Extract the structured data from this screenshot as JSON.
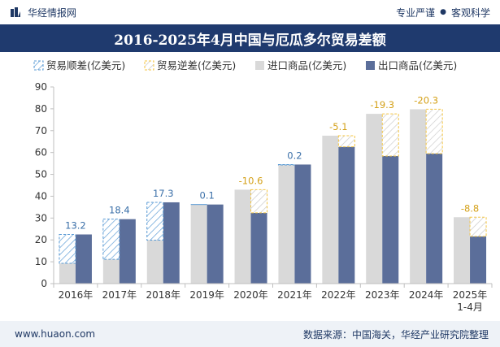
{
  "header": {
    "brand": "华经情报网",
    "slogan_left": "专业严谨",
    "slogan_sep": "●",
    "slogan_right": "客观科学"
  },
  "footer": {
    "url": "www.huaon.com",
    "source": "数据来源：中国海关，华经产业研究院整理"
  },
  "colors": {
    "surplus": "#5b9bd5",
    "deficit": "#f4c542",
    "import": "#d9d9d9",
    "export": "#5b6e9a",
    "title_bg": "#1f3a6e"
  },
  "chart_data": {
    "type": "bar",
    "title": "2016-2025年4月中国与厄瓜多尔贸易差额",
    "categories": [
      "2016年",
      "2017年",
      "2018年",
      "2019年",
      "2020年",
      "2021年",
      "2022年",
      "2023年",
      "2024年",
      "2025年\n1-4月"
    ],
    "series": [
      {
        "name": "贸易顺差(亿美元)",
        "values": [
          13.2,
          18.4,
          17.3,
          0.1,
          null,
          0.2,
          null,
          null,
          null,
          null
        ],
        "labels": [
          "13.2",
          "18.4",
          "17.3",
          "0.1",
          "",
          "0.2",
          "",
          "",
          "",
          ""
        ]
      },
      {
        "name": "贸易逆差(亿美元)",
        "values": [
          null,
          null,
          null,
          null,
          -10.6,
          null,
          -5.1,
          -19.3,
          -20.3,
          -8.8
        ],
        "labels": [
          "",
          "",
          "",
          "",
          "-10.6",
          "",
          "-5.1",
          "-19.3",
          "-20.3",
          "-8.8"
        ]
      },
      {
        "name": "进口商品(亿美元)",
        "values": [
          9.3,
          11.1,
          19.9,
          36.1,
          43.0,
          54.3,
          67.7,
          77.7,
          79.8,
          30.4
        ]
      },
      {
        "name": "出口商品(亿美元)",
        "values": [
          22.5,
          29.5,
          37.2,
          36.2,
          32.4,
          54.5,
          62.6,
          58.4,
          59.5,
          21.6
        ]
      }
    ],
    "ylim": [
      0,
      90
    ],
    "yticks": [
      0,
      10,
      20,
      30,
      40,
      50,
      60,
      70,
      80,
      90
    ],
    "legend_position": "top-left",
    "grid": false
  }
}
